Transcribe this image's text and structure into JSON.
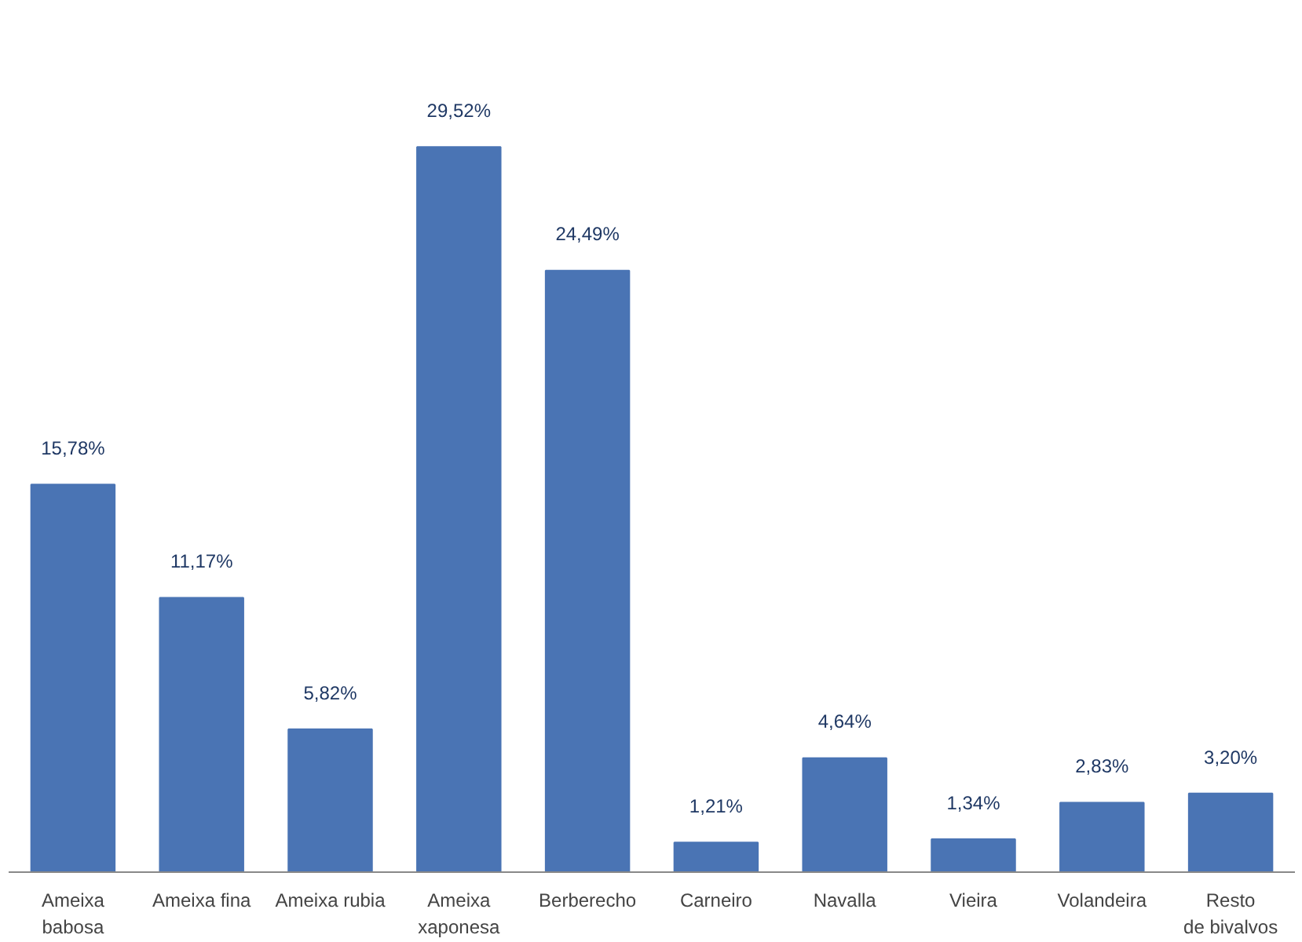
{
  "chart_data": {
    "type": "bar",
    "categories": [
      "Ameixa babosa",
      "Ameixa fina",
      "Ameixa rubia",
      "Ameixa xaponesa",
      "Berberecho",
      "Carneiro",
      "Navalla",
      "Vieira",
      "Volandeira",
      "Resto de bivalvos"
    ],
    "values": [
      15.78,
      11.17,
      5.82,
      29.52,
      24.49,
      1.21,
      4.64,
      1.34,
      2.83,
      3.2
    ],
    "value_labels": [
      "15,78%",
      "11,17%",
      "5,82%",
      "29,52%",
      "24,49%",
      "1,21%",
      "4,64%",
      "1,34%",
      "2,83%",
      "3,20%"
    ],
    "color": "#4a74b4"
  }
}
